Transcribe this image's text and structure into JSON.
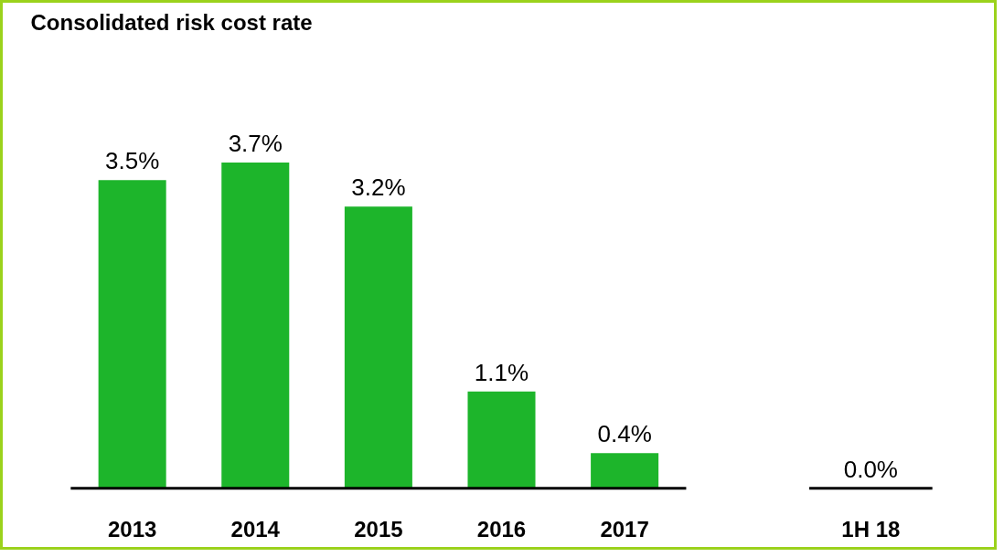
{
  "chart_data": {
    "type": "bar",
    "title": "Consolidated risk cost rate",
    "categories": [
      "2013",
      "2014",
      "2015",
      "2016",
      "2017",
      null,
      "1H 18"
    ],
    "values": [
      3.5,
      3.7,
      3.2,
      1.1,
      0.4,
      null,
      0.0
    ],
    "value_labels": [
      "3.5%",
      "3.7%",
      "3.2%",
      "1.1%",
      "0.4%",
      null,
      "0.0%"
    ],
    "color": "#1db52b",
    "grid": false,
    "tick_labels": "x"
  }
}
